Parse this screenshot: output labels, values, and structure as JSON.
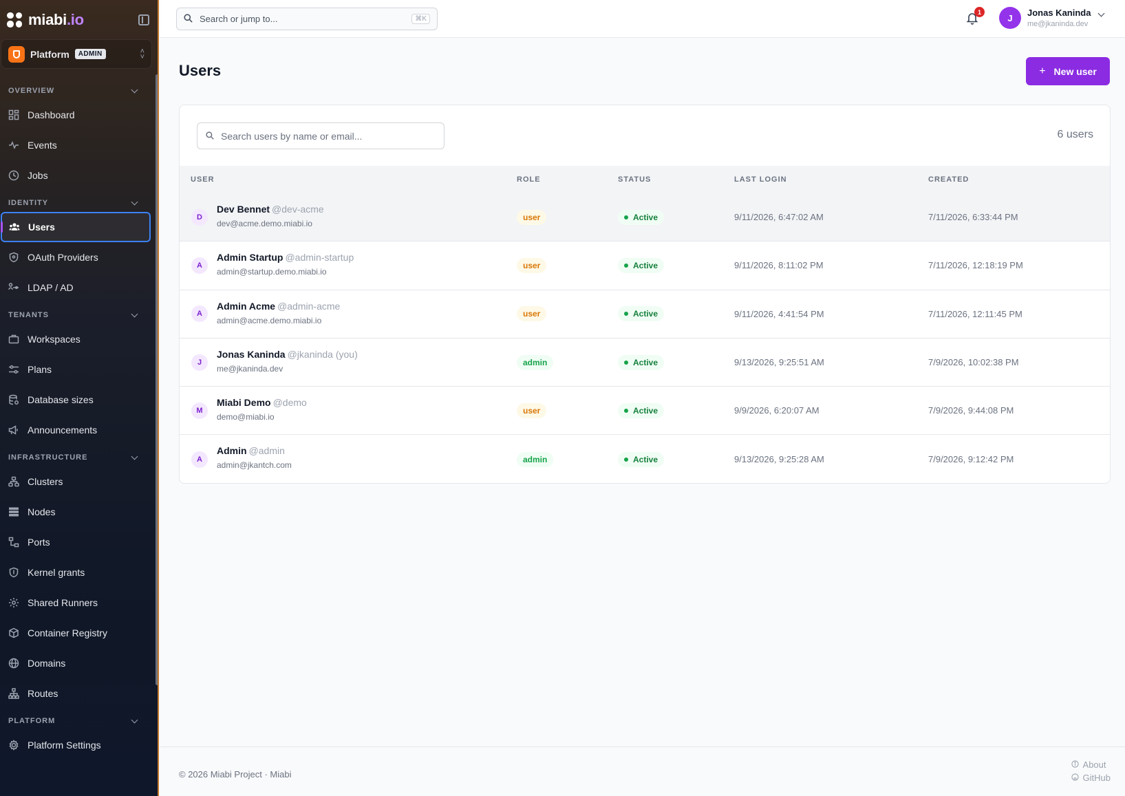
{
  "brand": {
    "name": "miabi",
    "tld": ".io"
  },
  "workspace": {
    "name": "Platform",
    "badge": "ADMIN"
  },
  "sidebar": {
    "overview": {
      "title": "OVERVIEW",
      "items": [
        {
          "label": "Dashboard",
          "icon": "dashboard-icon"
        },
        {
          "label": "Events",
          "icon": "activity-icon"
        },
        {
          "label": "Jobs",
          "icon": "clock-icon"
        }
      ]
    },
    "identity": {
      "title": "IDENTITY",
      "items": [
        {
          "label": "Users",
          "icon": "users-icon",
          "active": true
        },
        {
          "label": "OAuth Providers",
          "icon": "shield-icon"
        },
        {
          "label": "LDAP / AD",
          "icon": "ldap-icon"
        }
      ]
    },
    "tenants": {
      "title": "TENANTS",
      "items": [
        {
          "label": "Workspaces",
          "icon": "briefcase-icon"
        },
        {
          "label": "Plans",
          "icon": "sliders-icon"
        },
        {
          "label": "Database sizes",
          "icon": "database-icon"
        },
        {
          "label": "Announcements",
          "icon": "megaphone-icon"
        }
      ]
    },
    "infrastructure": {
      "title": "INFRASTRUCTURE",
      "items": [
        {
          "label": "Clusters",
          "icon": "clusters-icon"
        },
        {
          "label": "Nodes",
          "icon": "server-icon"
        },
        {
          "label": "Ports",
          "icon": "network-icon"
        },
        {
          "label": "Kernel grants",
          "icon": "shield-check-icon"
        },
        {
          "label": "Shared Runners",
          "icon": "cog-icon"
        },
        {
          "label": "Container Registry",
          "icon": "box-icon"
        },
        {
          "label": "Domains",
          "icon": "globe-icon"
        },
        {
          "label": "Routes",
          "icon": "sitemap-icon"
        }
      ]
    },
    "platform": {
      "title": "PLATFORM",
      "items": [
        {
          "label": "Platform Settings",
          "icon": "settings-icon"
        }
      ]
    }
  },
  "topbar": {
    "search_placeholder": "Search or jump to...",
    "shortcut": "⌘K",
    "notifications": "1",
    "user": {
      "initial": "J",
      "name": "Jonas Kaninda",
      "email": "me@jkaninda.dev"
    }
  },
  "main": {
    "title": "Users",
    "new_user_label": "New user",
    "search_placeholder": "Search users by name or email...",
    "user_count": "6 users",
    "columns": {
      "user": "USER",
      "role": "ROLE",
      "status": "STATUS",
      "last_login": "LAST LOGIN",
      "created": "CREATED"
    },
    "rows": [
      {
        "initial": "D",
        "name": "Dev Bennet",
        "handle": "@dev-acme",
        "email": "dev@acme.demo.miabi.io",
        "role": "user",
        "status": "Active",
        "last_login": "9/11/2026, 6:47:02 AM",
        "created": "7/11/2026, 6:33:44 PM"
      },
      {
        "initial": "A",
        "name": "Admin Startup",
        "handle": "@admin-startup",
        "email": "admin@startup.demo.miabi.io",
        "role": "user",
        "status": "Active",
        "last_login": "9/11/2026, 8:11:02 PM",
        "created": "7/11/2026, 12:18:19 PM"
      },
      {
        "initial": "A",
        "name": "Admin Acme",
        "handle": "@admin-acme",
        "email": "admin@acme.demo.miabi.io",
        "role": "user",
        "status": "Active",
        "last_login": "9/11/2026, 4:41:54 PM",
        "created": "7/11/2026, 12:11:45 PM"
      },
      {
        "initial": "J",
        "name": "Jonas Kaninda",
        "handle": "@jkaninda (you)",
        "email": "me@jkaninda.dev",
        "role": "admin",
        "status": "Active",
        "last_login": "9/13/2026, 9:25:51 AM",
        "created": "7/9/2026, 10:02:38 PM"
      },
      {
        "initial": "M",
        "name": "Miabi Demo",
        "handle": "@demo",
        "email": "demo@miabi.io",
        "role": "user",
        "status": "Active",
        "last_login": "9/9/2026, 6:20:07 AM",
        "created": "7/9/2026, 9:44:08 PM"
      },
      {
        "initial": "A",
        "name": "Admin",
        "handle": "@admin",
        "email": "admin@jkantch.com",
        "role": "admin",
        "status": "Active",
        "last_login": "9/13/2026, 9:25:28 AM",
        "created": "7/9/2026, 9:12:42 PM"
      }
    ]
  },
  "footer": {
    "copyright": "© 2026 Miabi Project · Miabi",
    "about": "About",
    "github": "GitHub"
  },
  "colors": {
    "accent": "#8b2be2",
    "active_outline": "#3b82f6",
    "sidebar_edge": "#c2772c"
  }
}
